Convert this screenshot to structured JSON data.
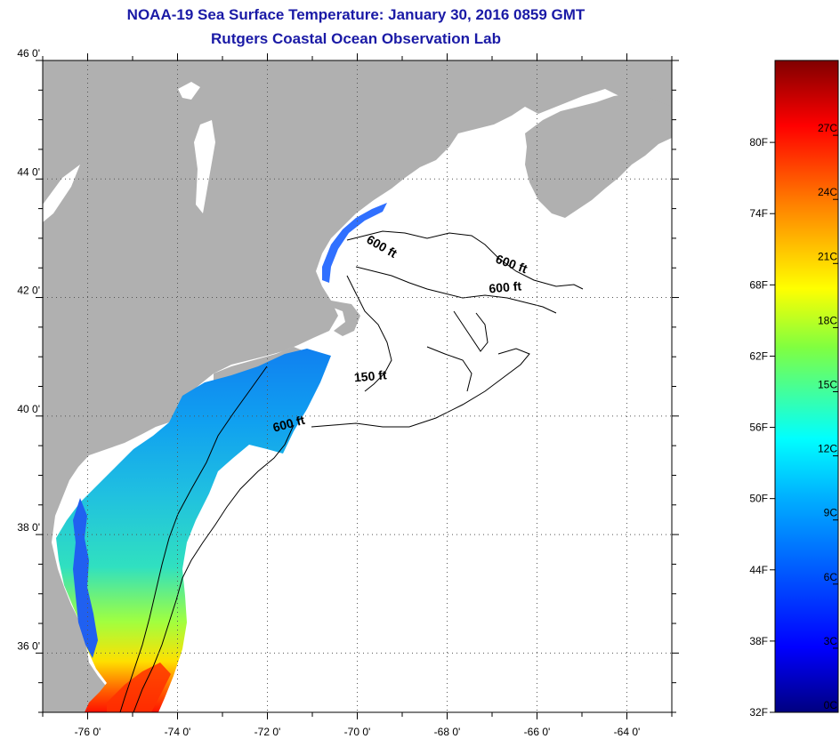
{
  "title": "NOAA-19 Sea Surface Temperature:  January 30, 2016 0859 GMT",
  "subtitle": "Rutgers Coastal Ocean Observation Lab",
  "map": {
    "lon_range": [
      -77,
      -63
    ],
    "lat_range": [
      35,
      46
    ],
    "lon_ticks": [
      "-76 0'",
      "-74 0'",
      "-72 0'",
      "-70 0'",
      "-68 0'",
      "-66 0'",
      "-64 0'"
    ],
    "lat_ticks": [
      "46 0'",
      "44 0'",
      "42 0'",
      "40 0'",
      "38 0'",
      "36 0'"
    ],
    "contour_labels": [
      {
        "text": "600 ft",
        "lon": -69.5,
        "lat": 42.8
      },
      {
        "text": "600 ft",
        "lon": -66.6,
        "lat": 42.5
      },
      {
        "text": "600 ft",
        "lon": -66.7,
        "lat": 42.1
      },
      {
        "text": "150 ft",
        "lon": -69.7,
        "lat": 40.6
      },
      {
        "text": "600 ft",
        "lon": -71.5,
        "lat": 39.8
      }
    ],
    "land_color": "#b0b0b0",
    "water_color": "#ffffff"
  },
  "colorbar": {
    "fahrenheit_labels": [
      "80F",
      "74F",
      "68F",
      "62F",
      "56F",
      "50F",
      "44F",
      "38F",
      "32F"
    ],
    "celsius_labels": [
      "27C",
      "24C",
      "21C",
      "18C",
      "15C",
      "12C",
      "9C",
      "6C",
      "3C",
      "0C"
    ]
  }
}
